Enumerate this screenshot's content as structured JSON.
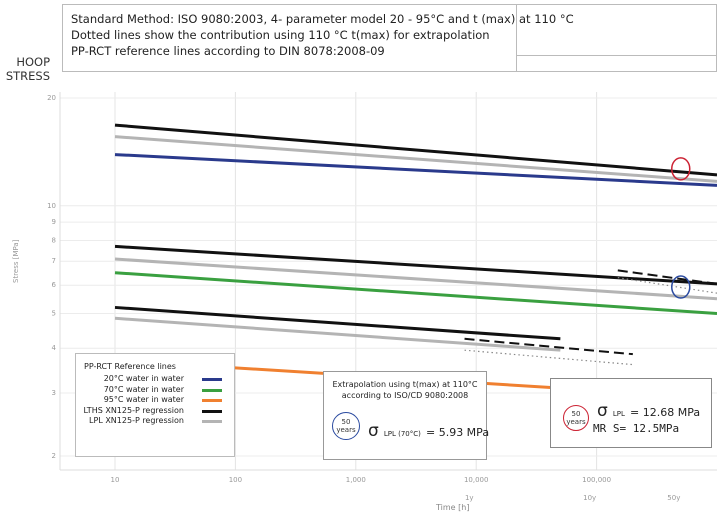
{
  "header": {
    "line1": "Standard Method: ISO 9080:2003, 4- parameter model 20 - 95°C and t (max) at 110 °C",
    "line2": "Dotted lines show the contribution using 110 °C t(max) for extrapolation",
    "line3": "PP-RCT reference lines according to DIN 8078:2008-09"
  },
  "y_axis_title": {
    "line1": "HOOP",
    "line2": "STRESS"
  },
  "legend": {
    "title": "PP-RCT Reference lines",
    "items": [
      {
        "label": "20°C water in water",
        "color": "#2a3a8c"
      },
      {
        "label": "70°C water in water",
        "color": "#3aa040"
      },
      {
        "label": "95°C water in water",
        "color": "#f08030"
      },
      {
        "label": "LTHS XN125-P regression",
        "color": "#111111"
      },
      {
        "label": "LPL XN125-P regression",
        "color": "#b4b4b4"
      }
    ]
  },
  "extrapolation_box": {
    "line1": "Extrapolation using t(max) at 110°C",
    "line2": "according to ISO/CD 9080:2008",
    "circle_top": "50",
    "circle_bottom": "years",
    "sigma": "σ",
    "sigma_sub": "LPL (70°C)",
    "sigma_value": "= 5.93 MPa",
    "circle_color": "#2a4aa0"
  },
  "lpl_box": {
    "circle_top": "50",
    "circle_bottom": "years",
    "sigma": "σ",
    "sigma_sub": "LPL",
    "sigma_value": "= 12.68 MPa",
    "mrs": "MR S=  12.5MPa",
    "circle_color": "#cc2233"
  },
  "chart_data": {
    "type": "line",
    "x_scale": "log",
    "y_scale": "log",
    "xlim": [
      1,
      1000000
    ],
    "ylim": [
      1,
      20
    ],
    "xlabel": "Time [h]",
    "ylabel": "Stress [MPa]",
    "x_ticks": [
      "10",
      "100",
      "1,000",
      "10,000",
      "100,000"
    ],
    "y_ticks": [
      "10",
      "9",
      "8",
      "7",
      "6",
      "5",
      "4",
      "3",
      "2"
    ],
    "secondary_x_labels": [
      "1y",
      "10y",
      "50y"
    ],
    "grid": true,
    "series": [
      {
        "name": "20°C water in water",
        "color": "#2a3a8c",
        "style": "solid",
        "x": [
          10,
          1000000
        ],
        "y": [
          13.9,
          11.4
        ]
      },
      {
        "name": "70°C water in water",
        "color": "#3aa040",
        "style": "solid",
        "x": [
          10,
          1000000
        ],
        "y": [
          6.5,
          5.0
        ]
      },
      {
        "name": "95°C water in water",
        "color": "#f08030",
        "style": "solid",
        "x": [
          10,
          500000
        ],
        "y": [
          3.7,
          2.95
        ]
      },
      {
        "name": "LTHS XN125-P regression",
        "color": "#111111",
        "style": "solid",
        "x": [
          10,
          1000000
        ],
        "y": [
          16.8,
          12.2
        ]
      },
      {
        "name": "LTHS XN125-P regression",
        "color": "#111111",
        "style": "solid",
        "x": [
          10,
          1000000
        ],
        "y": [
          7.7,
          6.05
        ]
      },
      {
        "name": "LTHS XN125-P regression",
        "color": "#111111",
        "style": "solid",
        "x": [
          10,
          50000
        ],
        "y": [
          5.2,
          4.25
        ]
      },
      {
        "name": "LPL XN125-P regression",
        "color": "#b4b4b4",
        "style": "solid",
        "x": [
          10,
          1000000
        ],
        "y": [
          15.6,
          11.7
        ]
      },
      {
        "name": "LPL XN125-P regression",
        "color": "#b4b4b4",
        "style": "solid",
        "x": [
          10,
          1000000
        ],
        "y": [
          7.1,
          5.5
        ]
      },
      {
        "name": "LPL XN125-P regression",
        "color": "#b4b4b4",
        "style": "solid",
        "x": [
          10,
          50000
        ],
        "y": [
          4.85,
          3.95
        ]
      },
      {
        "name": "LTHS 110°C t(max) contribution",
        "color": "#111111",
        "style": "dashed",
        "x": [
          150000,
          1000000
        ],
        "y": [
          6.6,
          6.05
        ]
      },
      {
        "name": "LPL 110°C t(max) contribution",
        "color": "#888888",
        "style": "dotted",
        "x": [
          150000,
          1000000
        ],
        "y": [
          6.3,
          5.7
        ]
      },
      {
        "name": "LTHS 110°C t(max) contribution",
        "color": "#111111",
        "style": "dashed",
        "x": [
          8000,
          200000
        ],
        "y": [
          4.25,
          3.85
        ]
      },
      {
        "name": "LPL 110°C t(max) contribution",
        "color": "#888888",
        "style": "dotted",
        "x": [
          8000,
          200000
        ],
        "y": [
          3.95,
          3.6
        ]
      }
    ],
    "markers": [
      {
        "x": 500000,
        "y": 12.68,
        "color": "#cc2233"
      },
      {
        "x": 500000,
        "y": 5.93,
        "color": "#2a4aa0"
      }
    ]
  }
}
